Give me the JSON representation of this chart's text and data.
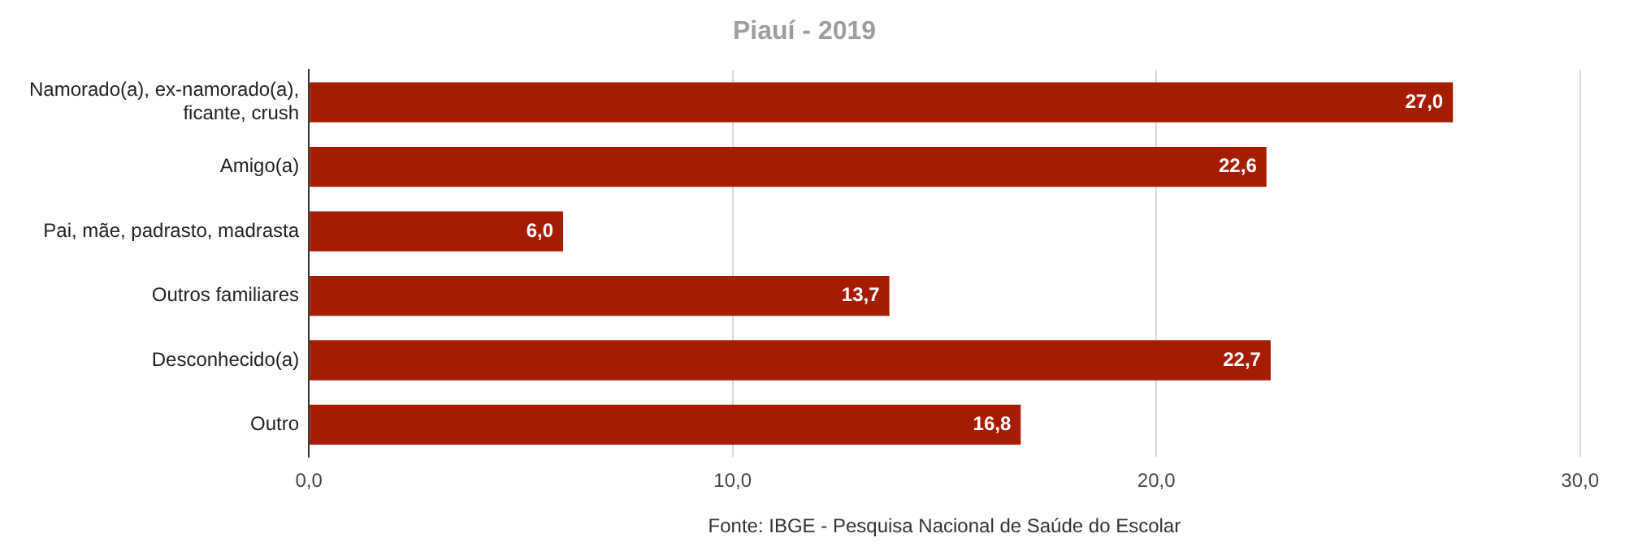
{
  "chart_data": {
    "type": "bar",
    "orientation": "horizontal",
    "title": "Piauí - 2019",
    "categories": [
      "Namorado(a), ex-namorado(a), ficante, crush",
      "Amigo(a)",
      "Pai, mãe, padrasto, madrasta",
      "Outros familiares",
      "Desconhecido(a)",
      "Outro"
    ],
    "values": [
      27.0,
      22.6,
      6.0,
      13.7,
      22.7,
      16.8
    ],
    "value_labels": [
      "27,0",
      "22,6",
      "6,0",
      "13,7",
      "22,7",
      "16,8"
    ],
    "color": "#a61c00",
    "xlim": [
      0,
      30
    ],
    "xticks": [
      {
        "value": 0,
        "label": "0,0"
      },
      {
        "value": 10,
        "label": "10,0"
      },
      {
        "value": 20,
        "label": "20,0"
      },
      {
        "value": 30,
        "label": "30,0"
      }
    ],
    "grid": "x",
    "legend": false,
    "annotations": [
      "Fonte: IBGE - Pesquisa Nacional de Saúde do Escolar"
    ]
  }
}
